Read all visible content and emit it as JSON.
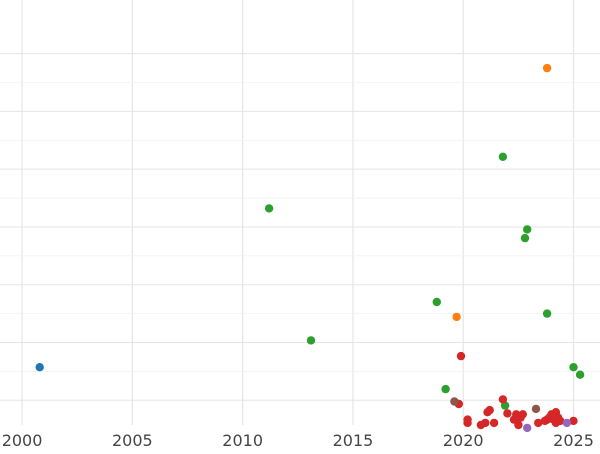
{
  "chart_data": {
    "type": "scatter",
    "title": "",
    "xlabel": "",
    "ylabel": "",
    "xlim": [
      1999.0,
      2026.2
    ],
    "ylim": [
      0,
      1.03
    ],
    "grid": true,
    "x_ticks": [
      2000,
      2005,
      2010,
      2015,
      2020,
      2025
    ],
    "x_tick_labels": [
      "2000",
      "2005",
      "2010",
      "2015",
      "2020",
      "2025"
    ],
    "y_gridlines": [
      0.06,
      0.2,
      0.34,
      0.48,
      0.62,
      0.76,
      0.9
    ],
    "x_minor_gridlines": [
      2000,
      2010,
      2020
    ],
    "colors": {
      "blue": "#1f77b4",
      "orange": "#ff7f0e",
      "green": "#2ca02c",
      "red": "#d62728",
      "purple": "#9467bd",
      "brown": "#8c564b",
      "grid_major": "#e5e5e5",
      "grid_minor": "#f2f2f2",
      "tick_text": "#444444"
    },
    "series": [
      {
        "color": "#1f77b4",
        "points": [
          [
            2000.8,
            0.14
          ]
        ]
      },
      {
        "color": "#ff7f0e",
        "points": [
          [
            2023.8,
            0.865
          ],
          [
            2019.7,
            0.262
          ]
        ]
      },
      {
        "color": "#2ca02c",
        "points": [
          [
            2011.2,
            0.525
          ],
          [
            2013.1,
            0.205
          ],
          [
            2018.8,
            0.298
          ],
          [
            2019.2,
            0.087
          ],
          [
            2021.8,
            0.65
          ],
          [
            2021.9,
            0.047
          ],
          [
            2022.8,
            0.453
          ],
          [
            2022.9,
            0.474
          ],
          [
            2023.8,
            0.27
          ],
          [
            2025.0,
            0.14
          ],
          [
            2025.3,
            0.122
          ]
        ]
      },
      {
        "color": "#d62728",
        "points": [
          [
            2019.9,
            0.167
          ],
          [
            2019.8,
            0.051
          ],
          [
            2020.2,
            0.013
          ],
          [
            2020.2,
            0.005
          ],
          [
            2020.8,
            0.0
          ],
          [
            2021.0,
            0.005
          ],
          [
            2021.1,
            0.031
          ],
          [
            2021.2,
            0.036
          ],
          [
            2021.4,
            0.005
          ],
          [
            2021.8,
            0.062
          ],
          [
            2022.0,
            0.028
          ],
          [
            2022.3,
            0.013
          ],
          [
            2022.4,
            0.026
          ],
          [
            2022.5,
            0.0
          ],
          [
            2022.6,
            0.018
          ],
          [
            2022.7,
            0.026
          ],
          [
            2023.4,
            0.005
          ],
          [
            2023.7,
            0.01
          ],
          [
            2023.8,
            0.013
          ],
          [
            2023.9,
            0.018
          ],
          [
            2024.0,
            0.026
          ],
          [
            2024.1,
            0.013
          ],
          [
            2024.2,
            0.031
          ],
          [
            2024.2,
            0.005
          ],
          [
            2024.3,
            0.018
          ],
          [
            2024.4,
            0.01
          ],
          [
            2025.0,
            0.01
          ]
        ]
      },
      {
        "color": "#9467bd",
        "points": [
          [
            2022.9,
            -0.007
          ],
          [
            2024.7,
            0.005
          ]
        ]
      },
      {
        "color": "#8c564b",
        "points": [
          [
            2019.6,
            0.057
          ],
          [
            2023.3,
            0.039
          ]
        ]
      }
    ]
  }
}
